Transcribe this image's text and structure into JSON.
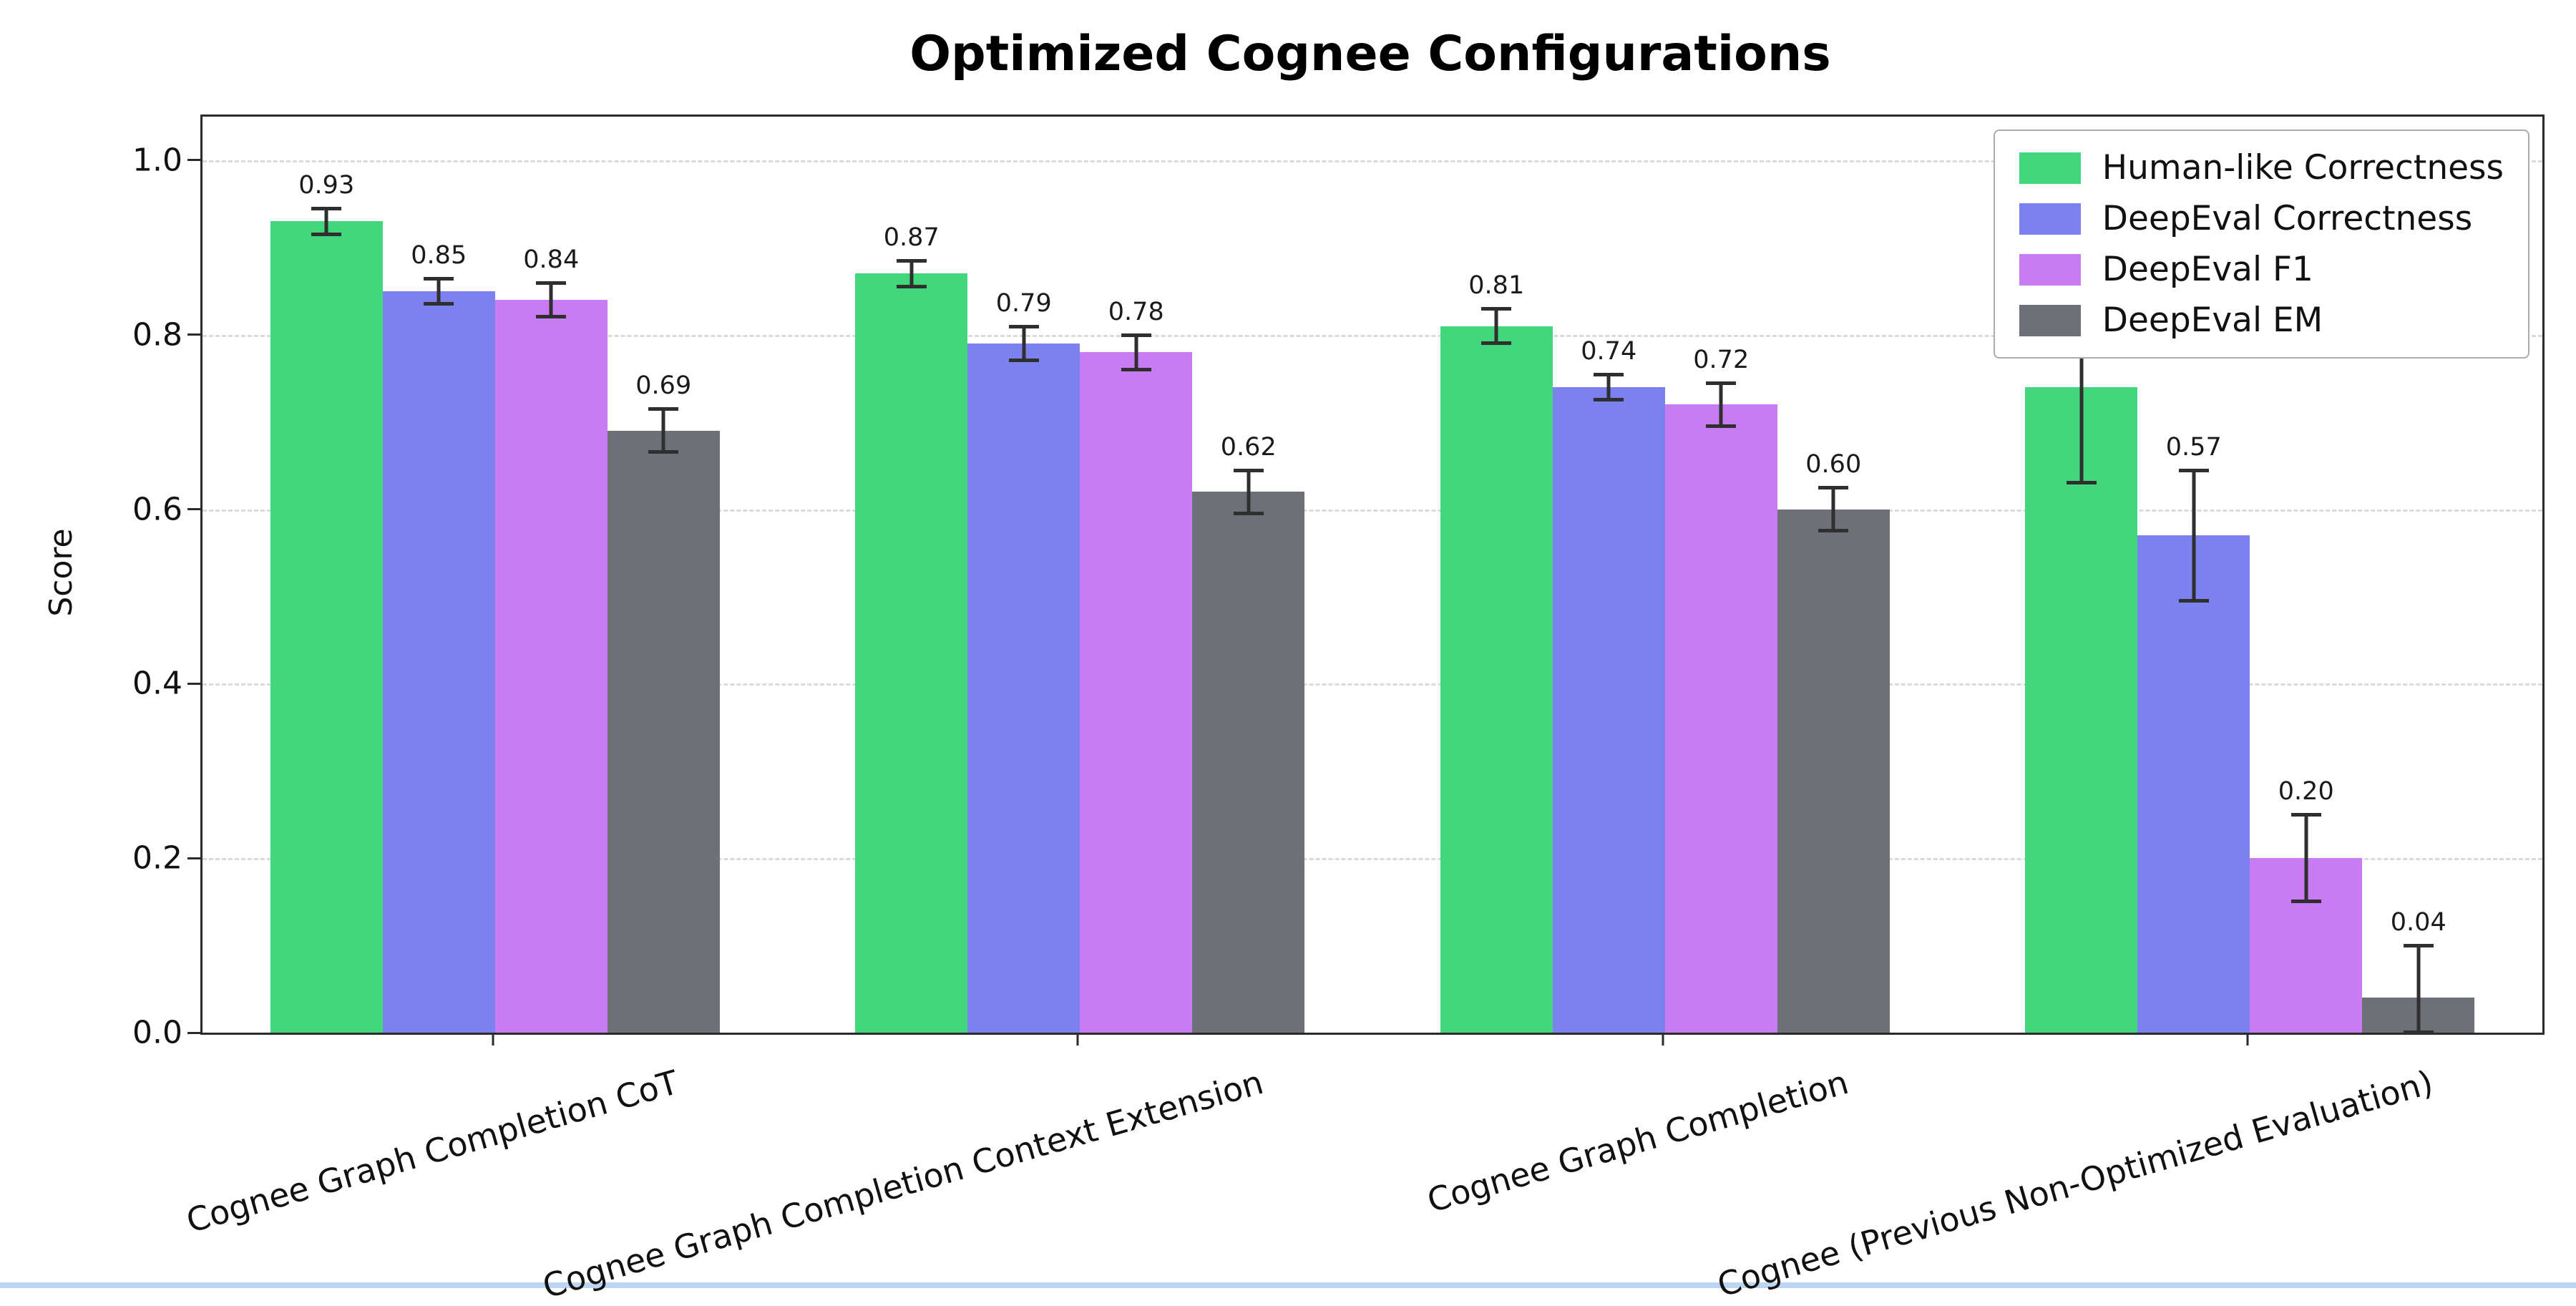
{
  "chart_data": {
    "type": "bar",
    "title": "Optimized Cognee Configurations",
    "xlabel": "",
    "ylabel": "Score",
    "ylim": [
      0,
      1.05
    ],
    "yticks": [
      0.0,
      0.2,
      0.4,
      0.6,
      0.8,
      1.0
    ],
    "grid": "horizontal-dashed",
    "legend_position": "upper-right",
    "error_bars": true,
    "bar_value_labels": true,
    "categories": [
      "Cognee Graph Completion CoT",
      "Cognee Graph Completion Context Extension",
      "Cognee Graph Completion",
      "Cognee (Previous Non-Optimized Evaluation)"
    ],
    "series": [
      {
        "name": "Human-like Correctness",
        "color": "#42d77d",
        "values": [
          0.93,
          0.87,
          0.81,
          0.74
        ],
        "errors": [
          0.015,
          0.015,
          0.02,
          0.11
        ]
      },
      {
        "name": "DeepEval Correctness",
        "color": "#7b82f0",
        "values": [
          0.85,
          0.79,
          0.74,
          0.57
        ],
        "errors": [
          0.015,
          0.02,
          0.015,
          0.075
        ]
      },
      {
        "name": "DeepEval F1",
        "color": "#c87bf2",
        "values": [
          0.84,
          0.78,
          0.72,
          0.2
        ],
        "errors": [
          0.02,
          0.02,
          0.025,
          0.05
        ]
      },
      {
        "name": "DeepEval EM",
        "color": "#6e7078",
        "values": [
          0.69,
          0.62,
          0.6,
          0.04
        ],
        "errors": [
          0.025,
          0.025,
          0.025,
          0.06
        ]
      }
    ],
    "error_bar_color": "#2f2f2f"
  }
}
